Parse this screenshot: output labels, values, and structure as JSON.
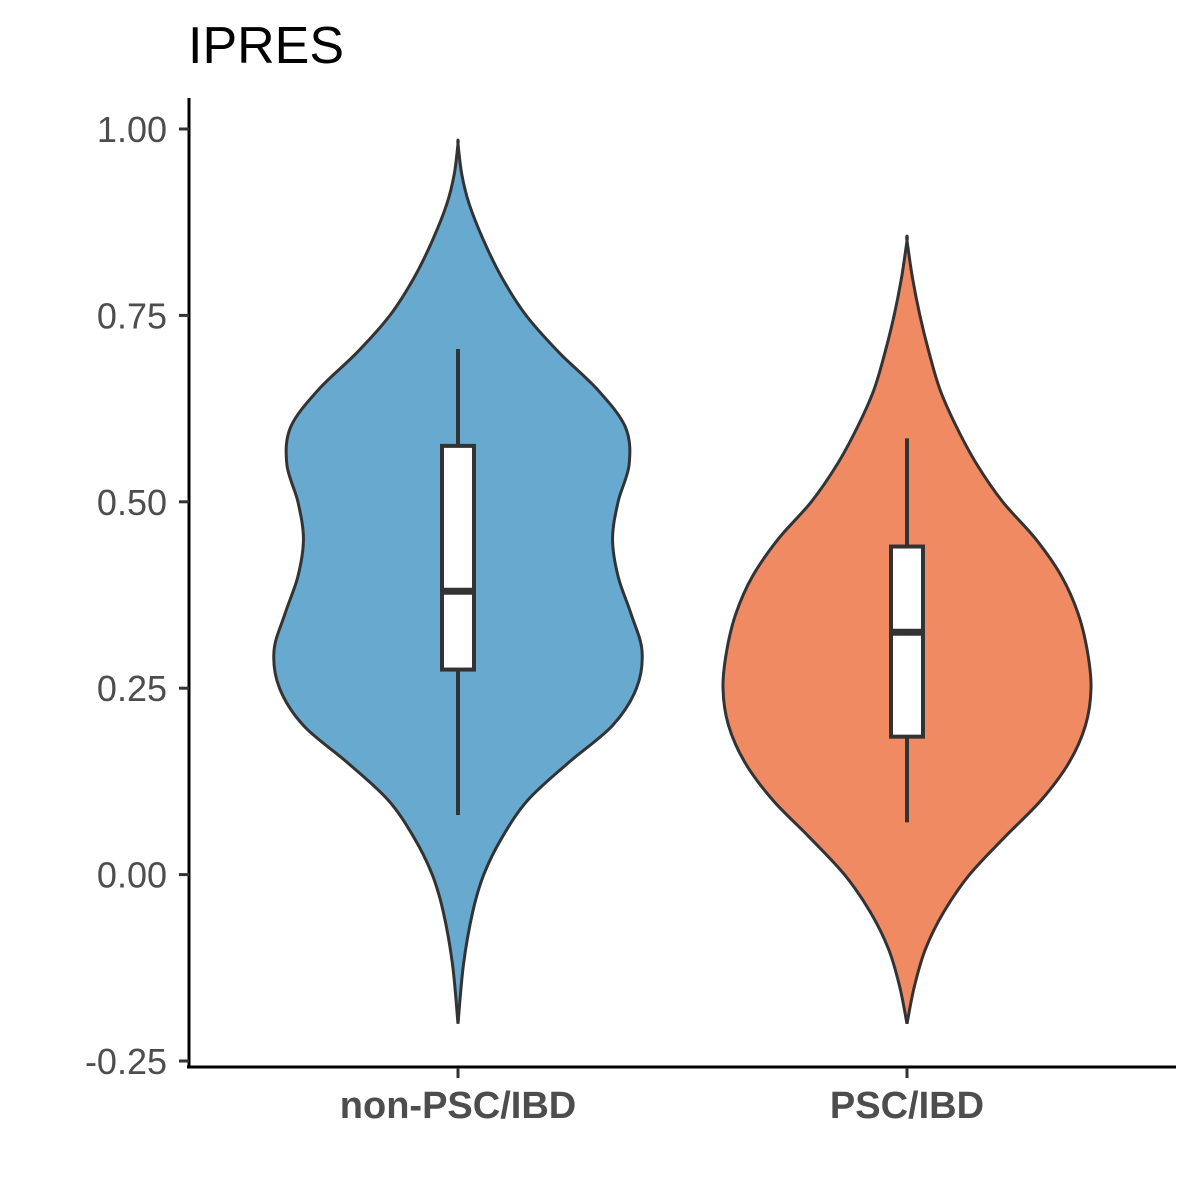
{
  "chart_data": {
    "type": "violin",
    "title": "IPRES",
    "xlabel": "",
    "ylabel": "",
    "categories": [
      "non-PSC/IBD",
      "PSC/IBD"
    ],
    "ylim": [
      -0.25,
      1.0
    ],
    "yticks": [
      -0.25,
      0.0,
      0.25,
      0.5,
      0.75,
      1.0
    ],
    "ytick_labels": [
      "-0.25",
      "0.00",
      "0.25",
      "0.50",
      "0.75",
      "1.00"
    ],
    "grid": false,
    "legend": "none",
    "series": [
      {
        "category": "non-PSC/IBD",
        "color": "#67a9cf",
        "violin_range": [
          -0.2,
          0.98
        ],
        "density_profile": [
          [
            -0.2,
            0.0
          ],
          [
            -0.12,
            0.03
          ],
          [
            -0.05,
            0.08
          ],
          [
            0.0,
            0.14
          ],
          [
            0.05,
            0.24
          ],
          [
            0.1,
            0.38
          ],
          [
            0.15,
            0.6
          ],
          [
            0.2,
            0.84
          ],
          [
            0.25,
            0.97
          ],
          [
            0.3,
            1.0
          ],
          [
            0.35,
            0.94
          ],
          [
            0.4,
            0.87
          ],
          [
            0.45,
            0.84
          ],
          [
            0.5,
            0.87
          ],
          [
            0.55,
            0.93
          ],
          [
            0.6,
            0.91
          ],
          [
            0.65,
            0.76
          ],
          [
            0.7,
            0.55
          ],
          [
            0.75,
            0.37
          ],
          [
            0.8,
            0.24
          ],
          [
            0.85,
            0.14
          ],
          [
            0.9,
            0.06
          ],
          [
            0.94,
            0.02
          ],
          [
            0.98,
            0.0
          ]
        ],
        "box": {
          "whisker_low": 0.08,
          "q1": 0.275,
          "median": 0.38,
          "q3": 0.575,
          "whisker_high": 0.705
        }
      },
      {
        "category": "PSC/IBD",
        "color": "#ef8a62",
        "violin_range": [
          -0.2,
          0.85
        ],
        "density_profile": [
          [
            -0.2,
            0.0
          ],
          [
            -0.15,
            0.04
          ],
          [
            -0.1,
            0.1
          ],
          [
            -0.05,
            0.2
          ],
          [
            0.0,
            0.34
          ],
          [
            0.05,
            0.53
          ],
          [
            0.1,
            0.73
          ],
          [
            0.15,
            0.88
          ],
          [
            0.2,
            0.97
          ],
          [
            0.25,
            1.0
          ],
          [
            0.3,
            0.98
          ],
          [
            0.35,
            0.93
          ],
          [
            0.4,
            0.84
          ],
          [
            0.45,
            0.7
          ],
          [
            0.5,
            0.52
          ],
          [
            0.55,
            0.38
          ],
          [
            0.6,
            0.27
          ],
          [
            0.65,
            0.18
          ],
          [
            0.7,
            0.12
          ],
          [
            0.75,
            0.07
          ],
          [
            0.8,
            0.03
          ],
          [
            0.85,
            0.0
          ]
        ],
        "box": {
          "whisker_low": 0.07,
          "q1": 0.185,
          "median": 0.325,
          "q3": 0.44,
          "whisker_high": 0.585
        }
      }
    ]
  }
}
